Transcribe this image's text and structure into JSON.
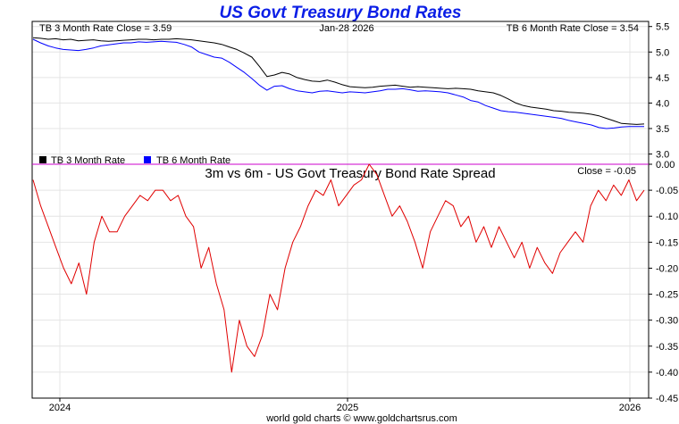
{
  "page_title": "US Govt Treasury Bond Rates",
  "footer": "world gold charts © www.goldchartsrus.com",
  "date_label": "Jan-28  2026",
  "colors": {
    "tb3": "#000000",
    "tb6": "#0000ff",
    "spread": "#e00000",
    "zero_line": "#cc00cc",
    "title": "#0a1ee6"
  },
  "chart_data": [
    {
      "type": "line",
      "title": "US Govt Treasury Bond Rates",
      "close_left": "TB 3 Month Rate Close = 3.59",
      "close_right": "TB 6 Month Rate Close = 3.54",
      "ylim": [
        2.8,
        5.6
      ],
      "yticks": [
        "5.5",
        "5.0",
        "4.5",
        "4.0",
        "3.5",
        "3.0"
      ],
      "xticks": [
        "2024",
        "2025",
        "2026"
      ],
      "legend": [
        "TB 3 Month Rate",
        "TB 6 Month Rate"
      ],
      "series": [
        {
          "name": "TB 3 Month Rate",
          "color": "#000000",
          "values": [
            5.28,
            5.27,
            5.25,
            5.26,
            5.24,
            5.25,
            5.22,
            5.23,
            5.24,
            5.22,
            5.21,
            5.22,
            5.23,
            5.24,
            5.25,
            5.25,
            5.24,
            5.25,
            5.25,
            5.26,
            5.25,
            5.24,
            5.22,
            5.2,
            5.18,
            5.15,
            5.1,
            5.05,
            4.98,
            4.9,
            4.72,
            4.52,
            4.55,
            4.6,
            4.57,
            4.5,
            4.46,
            4.43,
            4.42,
            4.45,
            4.41,
            4.36,
            4.32,
            4.31,
            4.3,
            4.31,
            4.33,
            4.34,
            4.35,
            4.33,
            4.31,
            4.32,
            4.31,
            4.3,
            4.29,
            4.28,
            4.29,
            4.28,
            4.27,
            4.24,
            4.22,
            4.2,
            4.15,
            4.08,
            4.0,
            3.95,
            3.92,
            3.9,
            3.88,
            3.85,
            3.84,
            3.82,
            3.81,
            3.8,
            3.78,
            3.75,
            3.7,
            3.65,
            3.6,
            3.59,
            3.58,
            3.59
          ]
        },
        {
          "name": "TB 6 Month Rate",
          "color": "#0000ff",
          "values": [
            5.25,
            5.18,
            5.12,
            5.08,
            5.05,
            5.04,
            5.03,
            5.05,
            5.08,
            5.12,
            5.14,
            5.16,
            5.18,
            5.18,
            5.2,
            5.19,
            5.2,
            5.21,
            5.2,
            5.19,
            5.15,
            5.1,
            5.0,
            4.95,
            4.9,
            4.88,
            4.8,
            4.7,
            4.6,
            4.48,
            4.35,
            4.25,
            4.33,
            4.34,
            4.28,
            4.24,
            4.22,
            4.2,
            4.23,
            4.24,
            4.22,
            4.2,
            4.22,
            4.21,
            4.2,
            4.22,
            4.24,
            4.27,
            4.27,
            4.28,
            4.26,
            4.23,
            4.24,
            4.23,
            4.22,
            4.2,
            4.16,
            4.12,
            4.05,
            4.02,
            3.95,
            3.9,
            3.85,
            3.83,
            3.82,
            3.8,
            3.78,
            3.76,
            3.74,
            3.72,
            3.7,
            3.66,
            3.63,
            3.6,
            3.57,
            3.52,
            3.5,
            3.51,
            3.53,
            3.54,
            3.54,
            3.54
          ]
        }
      ]
    },
    {
      "type": "line",
      "title": "3m vs 6m - US Govt Treasury Bond Rate Spread",
      "close_label": "Close = -0.05",
      "ylim": [
        -0.45,
        0.0
      ],
      "yticks": [
        "0.00",
        "-0.05",
        "-0.10",
        "-0.15",
        "-0.20",
        "-0.25",
        "-0.30",
        "-0.35",
        "-0.40",
        "-0.45"
      ],
      "xticks": [
        "2024",
        "2025",
        "2026"
      ],
      "series": [
        {
          "name": "Spread",
          "color": "#e00000",
          "values": [
            -0.03,
            -0.08,
            -0.12,
            -0.16,
            -0.2,
            -0.23,
            -0.19,
            -0.25,
            -0.15,
            -0.1,
            -0.13,
            -0.13,
            -0.1,
            -0.08,
            -0.06,
            -0.07,
            -0.05,
            -0.05,
            -0.07,
            -0.06,
            -0.1,
            -0.12,
            -0.2,
            -0.16,
            -0.23,
            -0.28,
            -0.4,
            -0.3,
            -0.35,
            -0.37,
            -0.33,
            -0.25,
            -0.28,
            -0.2,
            -0.15,
            -0.12,
            -0.08,
            -0.05,
            -0.06,
            -0.03,
            -0.08,
            -0.06,
            -0.04,
            -0.03,
            -0.0,
            -0.02,
            -0.06,
            -0.1,
            -0.08,
            -0.11,
            -0.15,
            -0.2,
            -0.13,
            -0.1,
            -0.07,
            -0.08,
            -0.12,
            -0.1,
            -0.15,
            -0.12,
            -0.16,
            -0.12,
            -0.15,
            -0.18,
            -0.15,
            -0.2,
            -0.16,
            -0.19,
            -0.21,
            -0.17,
            -0.15,
            -0.13,
            -0.15,
            -0.08,
            -0.05,
            -0.07,
            -0.04,
            -0.06,
            -0.03,
            -0.07,
            -0.05
          ]
        }
      ]
    }
  ]
}
